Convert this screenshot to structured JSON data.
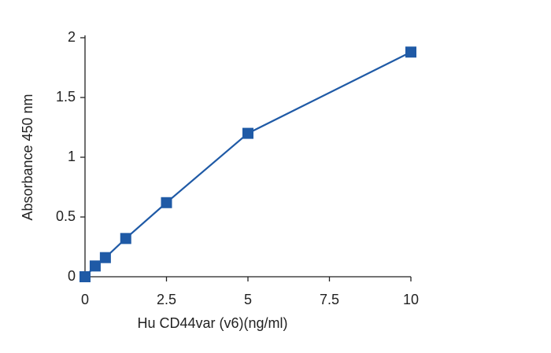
{
  "chart_data": {
    "type": "line",
    "xlabel": "Hu CD44var (v6)(ng/ml)",
    "ylabel": "Absorbance 450 nm",
    "x": [
      0,
      0.3125,
      0.625,
      1.25,
      2.5,
      5,
      10
    ],
    "values": [
      0,
      0.09,
      0.16,
      0.32,
      0.62,
      1.2,
      1.88
    ],
    "color": "#1f5aa6",
    "xlim": [
      0,
      10
    ],
    "xticks": [
      0,
      2.5,
      5,
      7.5,
      10
    ],
    "ylim": [
      0,
      2
    ],
    "yticks": [
      0,
      0.5,
      1,
      1.5,
      2
    ],
    "grid": false
  }
}
